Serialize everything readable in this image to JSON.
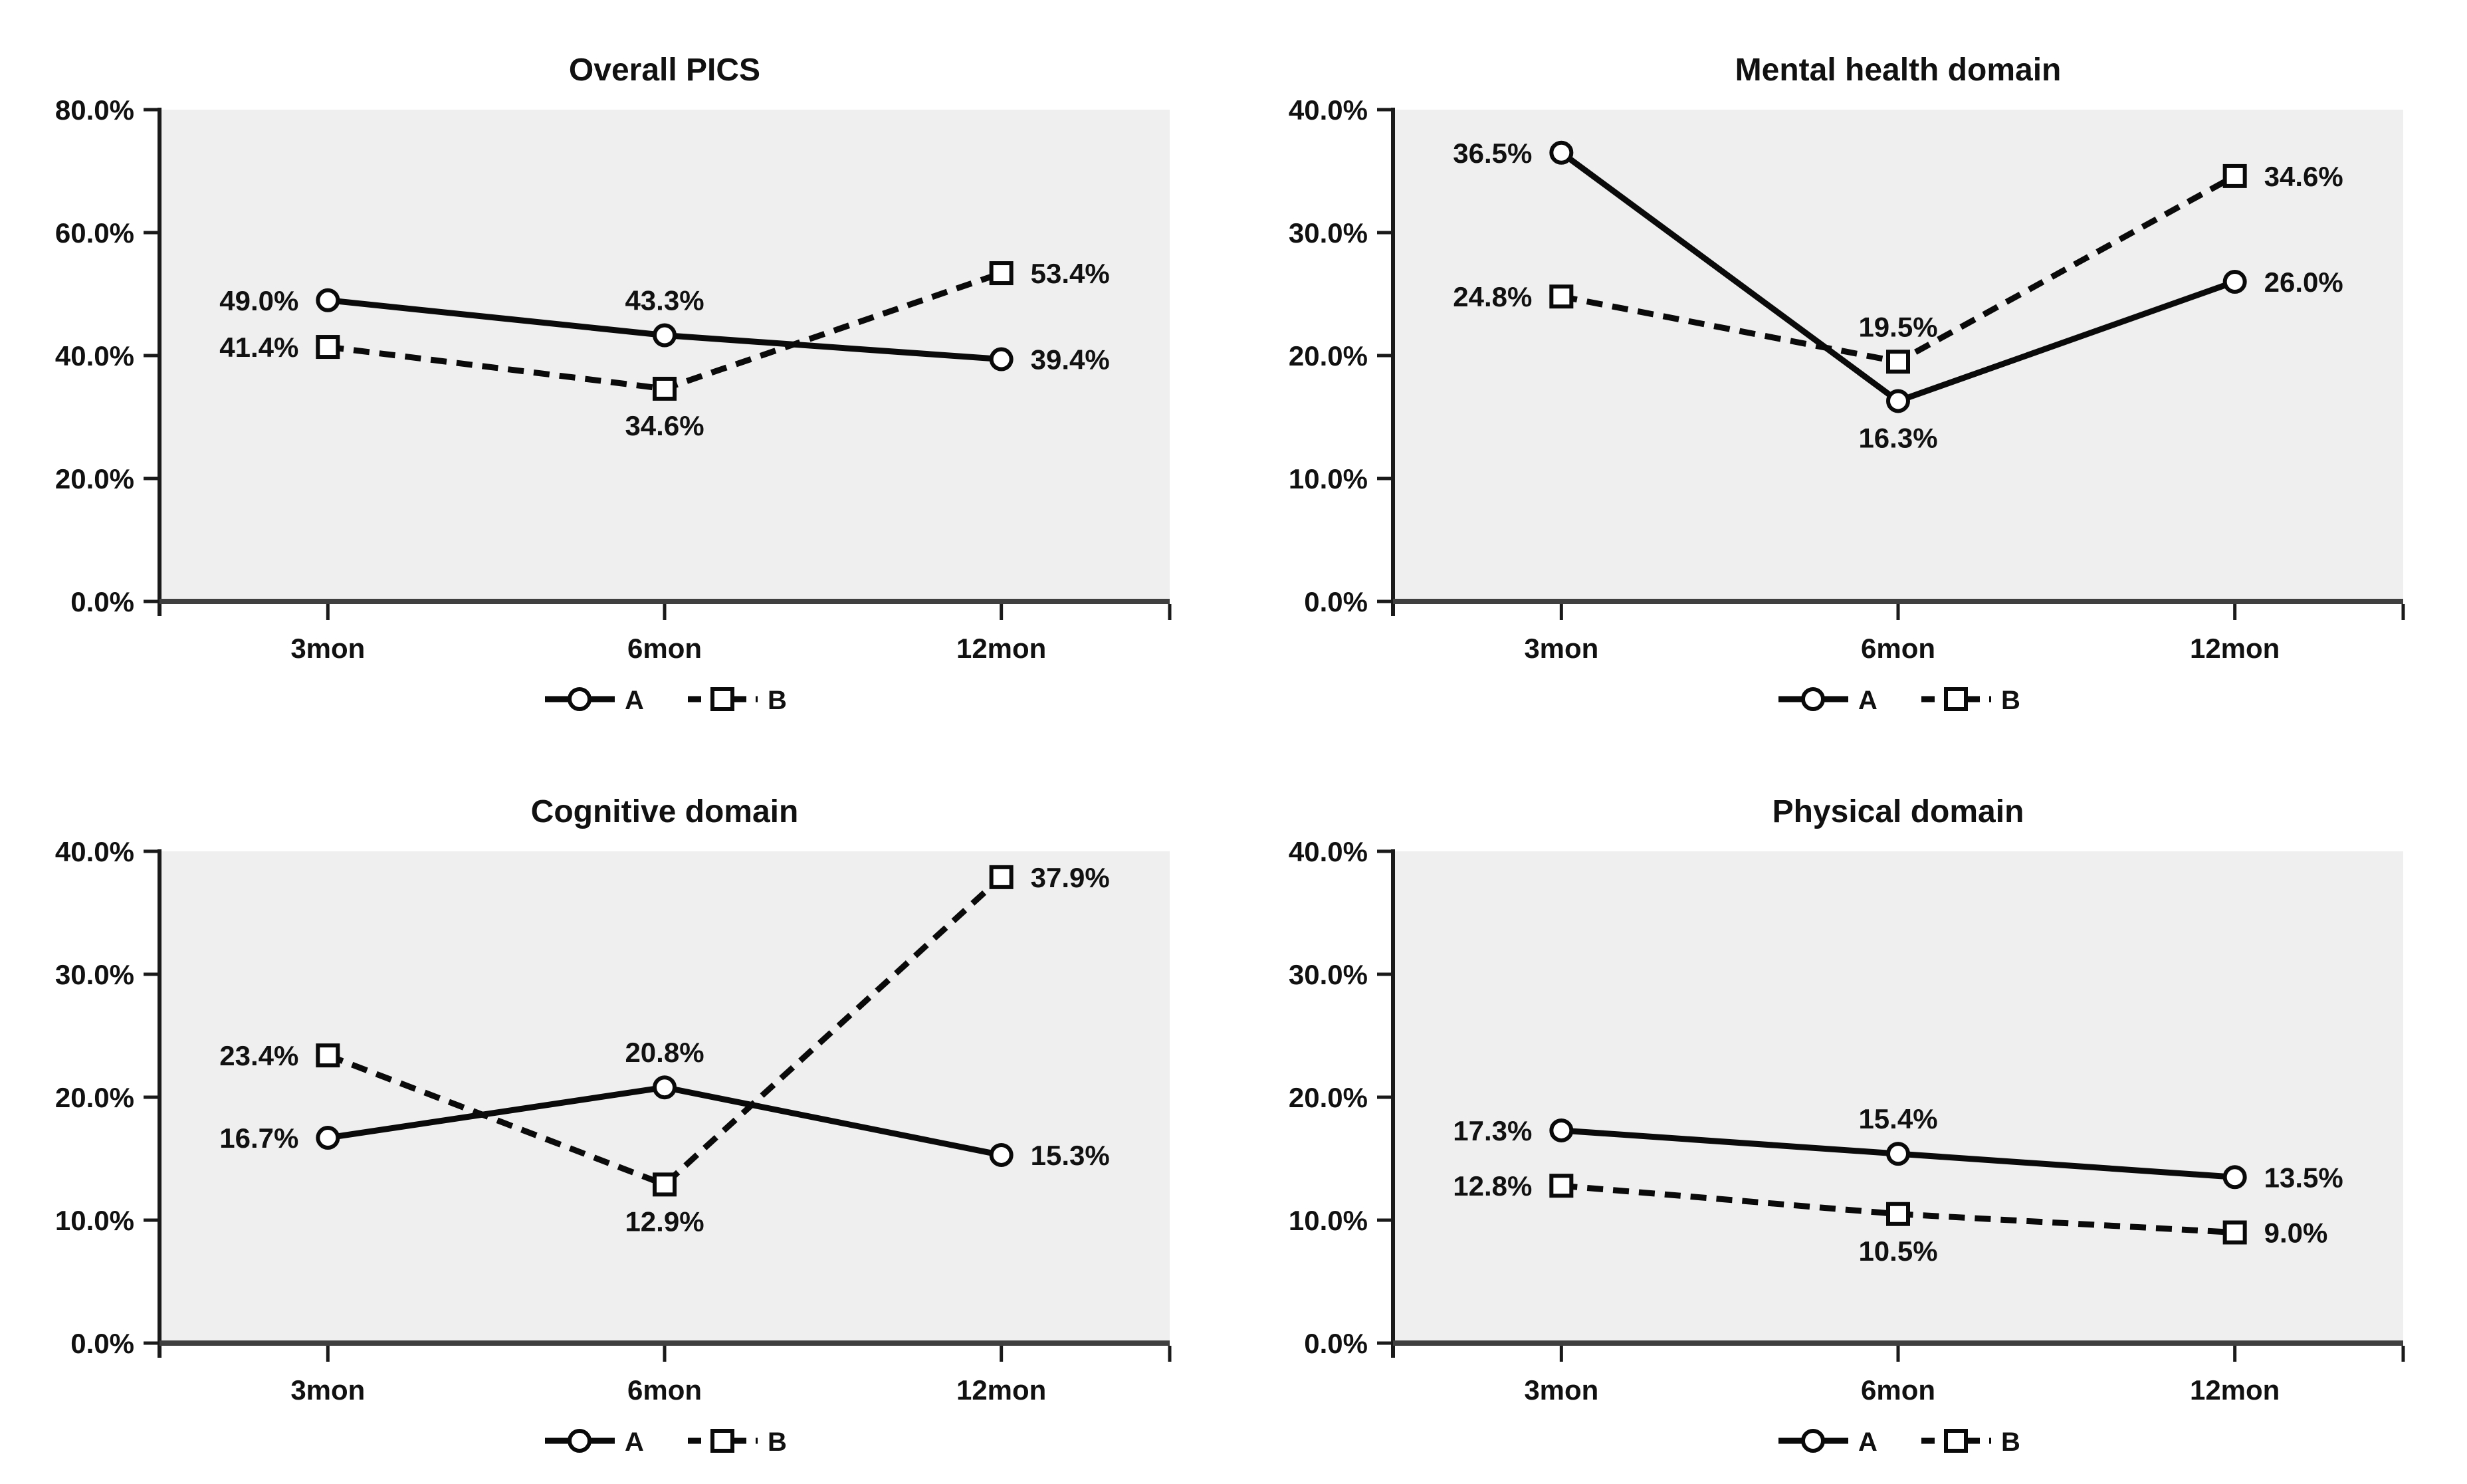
{
  "figure": {
    "background": "#ffffff",
    "plot_background": "#efefef",
    "line_color": "#0a0a0a",
    "axis_color": "#1a1a1a",
    "baseline_color": "#3f3f3f",
    "marker_fill": "#ffffff"
  },
  "legend": {
    "position": "bottom",
    "items": [
      {
        "label": "A",
        "marker": "circle",
        "line": "solid"
      },
      {
        "label": "B",
        "marker": "square",
        "line": "dashed"
      }
    ]
  },
  "chart_data": [
    {
      "type": "line",
      "title": "Overall PICS",
      "categories": [
        "3mon",
        "6mon",
        "12mon"
      ],
      "ylim": [
        0,
        0.8
      ],
      "ytick_values": [
        0,
        0.2,
        0.4,
        0.6,
        0.8
      ],
      "yticks": [
        "0.0%",
        "20.0%",
        "40.0%",
        "60.0%",
        "80.0%"
      ],
      "grid": false,
      "legend_position": "bottom",
      "series": [
        {
          "name": "A",
          "marker": "circle",
          "line": "solid",
          "values": [
            0.49,
            0.433,
            0.394
          ],
          "labels": [
            "49.0%",
            "43.3%",
            "39.4%"
          ],
          "label_pos": [
            "left",
            "above",
            "right"
          ]
        },
        {
          "name": "B",
          "marker": "square",
          "line": "dashed",
          "values": [
            0.414,
            0.346,
            0.534
          ],
          "labels": [
            "41.4%",
            "34.6%",
            "53.4%"
          ],
          "label_pos": [
            "left",
            "below",
            "right"
          ]
        }
      ]
    },
    {
      "type": "line",
      "title": "Mental health domain",
      "categories": [
        "3mon",
        "6mon",
        "12mon"
      ],
      "ylim": [
        0,
        0.4
      ],
      "ytick_values": [
        0,
        0.1,
        0.2,
        0.3,
        0.4
      ],
      "yticks": [
        "0.0%",
        "10.0%",
        "20.0%",
        "30.0%",
        "40.0%"
      ],
      "grid": false,
      "legend_position": "bottom",
      "series": [
        {
          "name": "A",
          "marker": "circle",
          "line": "solid",
          "values": [
            0.365,
            0.163,
            0.26
          ],
          "labels": [
            "36.5%",
            "16.3%",
            "26.0%"
          ],
          "label_pos": [
            "left",
            "below",
            "right"
          ]
        },
        {
          "name": "B",
          "marker": "square",
          "line": "dashed",
          "values": [
            0.248,
            0.195,
            0.346
          ],
          "labels": [
            "24.8%",
            "19.5%",
            "34.6%"
          ],
          "label_pos": [
            "left",
            "above",
            "right"
          ]
        }
      ]
    },
    {
      "type": "line",
      "title": "Cognitive domain",
      "categories": [
        "3mon",
        "6mon",
        "12mon"
      ],
      "ylim": [
        0,
        0.4
      ],
      "ytick_values": [
        0,
        0.1,
        0.2,
        0.3,
        0.4
      ],
      "yticks": [
        "0.0%",
        "10.0%",
        "20.0%",
        "30.0%",
        "40.0%"
      ],
      "grid": false,
      "legend_position": "bottom",
      "series": [
        {
          "name": "A",
          "marker": "circle",
          "line": "solid",
          "values": [
            0.167,
            0.208,
            0.153
          ],
          "labels": [
            "16.7%",
            "20.8%",
            "15.3%"
          ],
          "label_pos": [
            "left",
            "above",
            "right"
          ]
        },
        {
          "name": "B",
          "marker": "square",
          "line": "dashed",
          "values": [
            0.234,
            0.129,
            0.379
          ],
          "labels": [
            "23.4%",
            "12.9%",
            "37.9%"
          ],
          "label_pos": [
            "left",
            "below",
            "right"
          ]
        }
      ]
    },
    {
      "type": "line",
      "title": "Physical domain",
      "categories": [
        "3mon",
        "6mon",
        "12mon"
      ],
      "ylim": [
        0,
        0.4
      ],
      "ytick_values": [
        0,
        0.1,
        0.2,
        0.3,
        0.4
      ],
      "yticks": [
        "0.0%",
        "10.0%",
        "20.0%",
        "30.0%",
        "40.0%"
      ],
      "grid": false,
      "legend_position": "bottom",
      "series": [
        {
          "name": "A",
          "marker": "circle",
          "line": "solid",
          "values": [
            0.173,
            0.154,
            0.135
          ],
          "labels": [
            "17.3%",
            "15.4%",
            "13.5%"
          ],
          "label_pos": [
            "left",
            "above",
            "right"
          ]
        },
        {
          "name": "B",
          "marker": "square",
          "line": "dashed",
          "values": [
            0.128,
            0.105,
            0.09
          ],
          "labels": [
            "12.8%",
            "10.5%",
            "9.0%"
          ],
          "label_pos": [
            "left",
            "below",
            "right"
          ]
        }
      ]
    }
  ]
}
